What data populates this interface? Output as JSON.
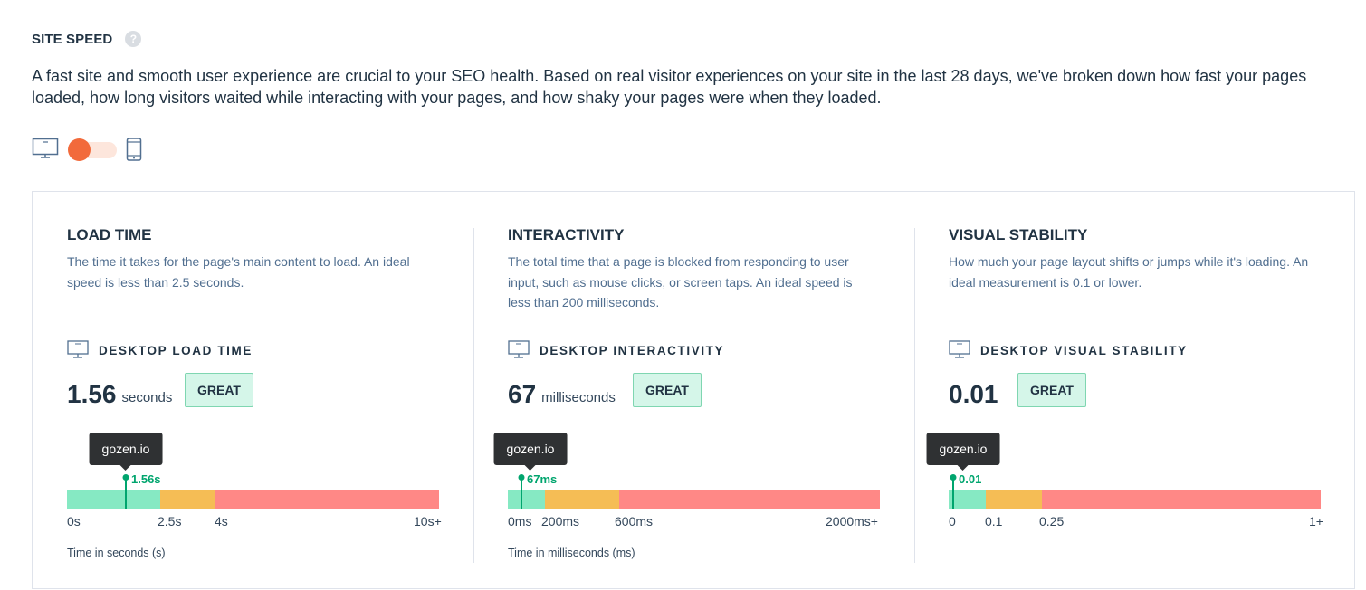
{
  "header": {
    "title": "SITE SPEED",
    "help_icon": "?"
  },
  "intro": "A fast site and smooth user experience are crucial to your SEO health. Based on real visitor experiences on your site in the last 28 days, we've broken down how fast your pages loaded, how long visitors waited while interacting with your pages, and how shaky your pages were when they loaded.",
  "device_toggle": {
    "selected": "desktop",
    "options": [
      "desktop-icon",
      "mobile-icon"
    ]
  },
  "colors": {
    "accent": "#f26a3b",
    "good": "#86e9c3",
    "warn": "#f5bd55",
    "bad": "#ff8886",
    "marker": "#00a56e"
  },
  "metrics": [
    {
      "title": "LOAD TIME",
      "description": "The time it takes for the page's main content to load. An ideal speed is less than 2.5 seconds.",
      "label": "DESKTOP LOAD TIME",
      "value": "1.56",
      "unit": "seconds",
      "rating": "GREAT",
      "tooltip": "gozen.io",
      "marker_label": "1.56s",
      "ticks": [
        "0s",
        "2.5s",
        "4s",
        "10s+"
      ],
      "axis_label": "Time in seconds (s)"
    },
    {
      "title": "INTERACTIVITY",
      "description": "The total time that a page is blocked from responding to user input, such as mouse clicks, or screen taps. An ideal speed is less than 200 milliseconds.",
      "label": "DESKTOP INTERACTIVITY",
      "value": "67",
      "unit": "milliseconds",
      "rating": "GREAT",
      "tooltip": "gozen.io",
      "marker_label": "67ms",
      "ticks": [
        "0ms",
        "200ms",
        "600ms",
        "2000ms+"
      ],
      "axis_label": "Time in milliseconds (ms)"
    },
    {
      "title": "VISUAL STABILITY",
      "description": "How much your page layout shifts or jumps while it's loading. An ideal measurement is 0.1 or lower.",
      "label": "DESKTOP VISUAL STABILITY",
      "value": "0.01",
      "unit": "",
      "rating": "GREAT",
      "tooltip": "gozen.io",
      "marker_label": "0.01",
      "ticks": [
        "0",
        "0.1",
        "0.25",
        "1+"
      ],
      "axis_label": ""
    }
  ]
}
